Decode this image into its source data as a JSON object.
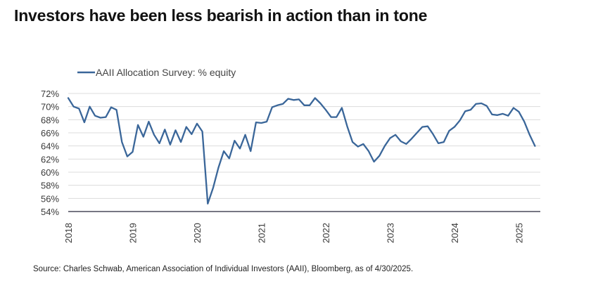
{
  "headline": "Investors have been less bearish in action than in tone",
  "source": "Source: Charles Schwab, American Association of Individual Investors (AAII), Bloomberg, as of 4/30/2025.",
  "chart_data": {
    "type": "line",
    "title": "",
    "xlabel": "",
    "ylabel": "",
    "ylim": [
      54,
      72
    ],
    "yticks": [
      54,
      56,
      58,
      60,
      62,
      64,
      66,
      68,
      70,
      72
    ],
    "ytick_labels": [
      "54%",
      "56%",
      "58%",
      "60%",
      "62%",
      "64%",
      "66%",
      "68%",
      "70%",
      "72%"
    ],
    "xlim": [
      2018,
      2025.333
    ],
    "xticks": [
      2018,
      2019,
      2020,
      2021,
      2022,
      2023,
      2024,
      2025
    ],
    "xtick_labels": [
      "2018",
      "2019",
      "2020",
      "2021",
      "2022",
      "2023",
      "2024",
      "2025"
    ],
    "grid": true,
    "legend_position": "top-left",
    "series": [
      {
        "name": "AAII Allocation Survey: % equity",
        "color": "#3a6699",
        "x": [
          "2018-01",
          "2018-02",
          "2018-03",
          "2018-04",
          "2018-05",
          "2018-06",
          "2018-07",
          "2018-08",
          "2018-09",
          "2018-10",
          "2018-11",
          "2018-12",
          "2019-01",
          "2019-02",
          "2019-03",
          "2019-04",
          "2019-05",
          "2019-06",
          "2019-07",
          "2019-08",
          "2019-09",
          "2019-10",
          "2019-11",
          "2019-12",
          "2020-01",
          "2020-02",
          "2020-03",
          "2020-04",
          "2020-05",
          "2020-06",
          "2020-07",
          "2020-08",
          "2020-09",
          "2020-10",
          "2020-11",
          "2020-12",
          "2021-01",
          "2021-02",
          "2021-03",
          "2021-04",
          "2021-05",
          "2021-06",
          "2021-07",
          "2021-08",
          "2021-09",
          "2021-10",
          "2021-11",
          "2021-12",
          "2022-01",
          "2022-02",
          "2022-03",
          "2022-04",
          "2022-05",
          "2022-06",
          "2022-07",
          "2022-08",
          "2022-09",
          "2022-10",
          "2022-11",
          "2022-12",
          "2023-01",
          "2023-02",
          "2023-03",
          "2023-04",
          "2023-05",
          "2023-06",
          "2023-07",
          "2023-08",
          "2023-09",
          "2023-10",
          "2023-11",
          "2023-12",
          "2024-01",
          "2024-02",
          "2024-03",
          "2024-04",
          "2024-05",
          "2024-06",
          "2024-07",
          "2024-08",
          "2024-09",
          "2024-10",
          "2024-11",
          "2024-12",
          "2025-01",
          "2025-02",
          "2025-03",
          "2025-04"
        ],
        "values": [
          71.3,
          70.0,
          69.7,
          67.6,
          70.0,
          68.6,
          68.3,
          68.4,
          69.9,
          69.5,
          64.6,
          62.4,
          63.1,
          67.2,
          65.4,
          67.7,
          65.7,
          64.4,
          66.5,
          64.2,
          66.4,
          64.6,
          66.9,
          65.8,
          67.4,
          66.2,
          55.2,
          57.6,
          60.7,
          63.2,
          62.1,
          64.8,
          63.6,
          65.7,
          63.2,
          67.6,
          67.5,
          67.7,
          69.9,
          70.2,
          70.4,
          71.2,
          71.0,
          71.1,
          70.2,
          70.2,
          71.3,
          70.5,
          69.5,
          68.4,
          68.4,
          69.8,
          67.0,
          64.6,
          63.9,
          64.3,
          63.2,
          61.6,
          62.5,
          64.0,
          65.2,
          65.7,
          64.7,
          64.3,
          65.1,
          66.0,
          66.9,
          67.0,
          65.8,
          64.4,
          64.6,
          66.3,
          66.9,
          67.9,
          69.3,
          69.5,
          70.4,
          70.5,
          70.1,
          68.8,
          68.7,
          68.9,
          68.6,
          69.8,
          69.2,
          67.7,
          65.7,
          64.0
        ]
      }
    ]
  }
}
